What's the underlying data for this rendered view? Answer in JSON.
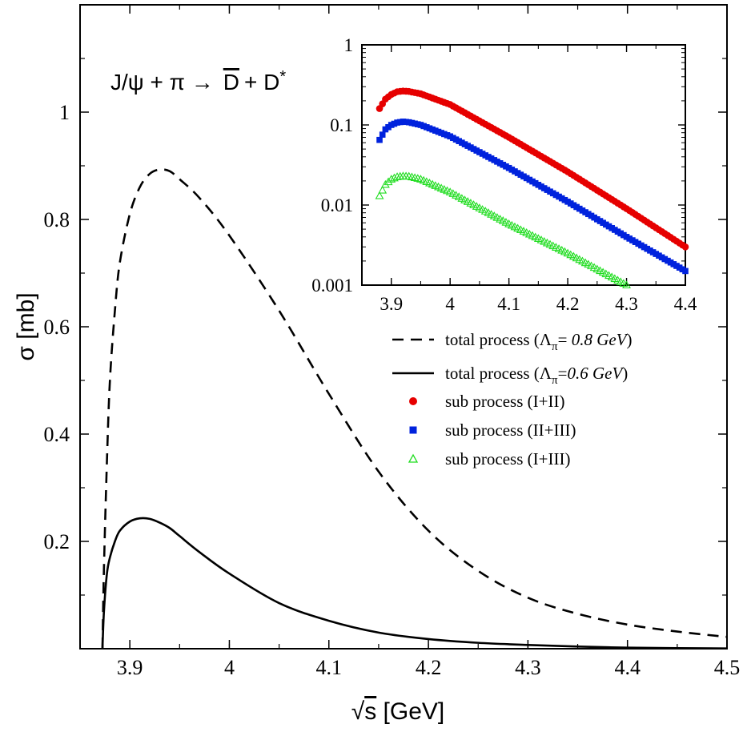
{
  "chart_data": [
    {
      "id": "main",
      "type": "line",
      "title": "J/ψ + π → D̅ + D*",
      "title_parts": {
        "lhs": "J/ψ + π →",
        "d": "D",
        "plus": "+ D",
        "star": "*"
      },
      "xlabel": "√s [GeV]",
      "xlabel_parts": {
        "root": "√",
        "var": "s",
        "unit": " [GeV]"
      },
      "ylabel": "σ [mb]",
      "xlim": [
        3.85,
        4.5
      ],
      "ylim": [
        0,
        1.2
      ],
      "xticks": [
        3.9,
        4.0,
        4.1,
        4.2,
        4.3,
        4.4,
        4.5
      ],
      "xtick_labels": [
        "3.9",
        "4",
        "4.1",
        "4.2",
        "4.3",
        "4.4",
        "4.5"
      ],
      "yticks": [
        0.2,
        0.4,
        0.6,
        0.8,
        1.0
      ],
      "ytick_labels": [
        "0.2",
        "0.4",
        "0.6",
        "0.8",
        "1"
      ],
      "series": [
        {
          "name": "total process (Λπ= 0.8 GeV)",
          "style": "dashed",
          "x": [
            3.8725,
            3.874,
            3.877,
            3.88,
            3.885,
            3.89,
            3.9,
            3.91,
            3.92,
            3.93,
            3.94,
            3.95,
            3.97,
            4.0,
            4.05,
            4.1,
            4.15,
            4.2,
            4.25,
            4.3,
            4.35,
            4.4,
            4.45,
            4.5
          ],
          "y": [
            0.0,
            0.15,
            0.35,
            0.5,
            0.63,
            0.72,
            0.81,
            0.86,
            0.885,
            0.893,
            0.89,
            0.875,
            0.84,
            0.77,
            0.63,
            0.475,
            0.33,
            0.22,
            0.145,
            0.095,
            0.065,
            0.045,
            0.032,
            0.022
          ]
        },
        {
          "name": "total process (Λπ=0.6 GeV)",
          "style": "solid",
          "x": [
            3.8725,
            3.874,
            3.877,
            3.88,
            3.885,
            3.89,
            3.9,
            3.91,
            3.92,
            3.93,
            3.94,
            3.95,
            3.97,
            4.0,
            4.05,
            4.1,
            4.15,
            4.2,
            4.25,
            4.3,
            4.35,
            4.4,
            4.45,
            4.5
          ],
          "y": [
            0.0,
            0.07,
            0.14,
            0.17,
            0.2,
            0.22,
            0.237,
            0.243,
            0.242,
            0.235,
            0.225,
            0.21,
            0.18,
            0.14,
            0.085,
            0.052,
            0.03,
            0.018,
            0.011,
            0.007,
            0.004,
            0.002,
            0.001,
            0.0005
          ]
        }
      ],
      "legend": [
        {
          "style": "dashed",
          "label": "total process (",
          "sym": "Λ",
          "sub": "π",
          "rest": "= ",
          "value": "0.8 GeV",
          "close": ")"
        },
        {
          "style": "solid",
          "label": "total process (",
          "sym": "Λ",
          "sub": "π",
          "rest": "=",
          "value": "0.6 GeV",
          "close": ")"
        },
        {
          "style": "circle",
          "color": "#e60000",
          "label": "sub process (I+II)"
        },
        {
          "style": "square",
          "color": "#0022dd",
          "label": "sub process (II+III)"
        },
        {
          "style": "triangle",
          "color": "#22dd22",
          "label": "sub process (I+III)"
        }
      ],
      "legend_position": "right"
    },
    {
      "id": "inset",
      "type": "scatter",
      "yscale": "log",
      "xlim": [
        3.85,
        4.4
      ],
      "ylim": [
        0.001,
        1
      ],
      "xticks": [
        3.9,
        4.0,
        4.1,
        4.2,
        4.3,
        4.4
      ],
      "xtick_labels": [
        "3.9",
        "4",
        "4.1",
        "4.2",
        "4.3",
        "4.4"
      ],
      "yticks": [
        0.001,
        0.01,
        0.1,
        1
      ],
      "ytick_labels": [
        "0.001",
        "0.01",
        "0.1",
        "1"
      ],
      "series": [
        {
          "name": "sub process (I+II)",
          "marker": "circle",
          "color": "#e60000",
          "x_start": 3.88,
          "x_end": 4.4,
          "x_step": 0.005,
          "key_x": [
            3.88,
            3.89,
            3.9,
            3.91,
            3.92,
            3.93,
            3.95,
            4.0,
            4.1,
            4.2,
            4.3,
            4.4
          ],
          "key_y": [
            0.16,
            0.21,
            0.24,
            0.26,
            0.265,
            0.262,
            0.245,
            0.18,
            0.07,
            0.026,
            0.009,
            0.003
          ]
        },
        {
          "name": "sub process (II+III)",
          "marker": "square",
          "color": "#0022dd",
          "x_start": 3.88,
          "x_end": 4.4,
          "x_step": 0.005,
          "key_x": [
            3.88,
            3.89,
            3.9,
            3.91,
            3.92,
            3.93,
            3.95,
            4.0,
            4.1,
            4.2,
            4.3,
            4.4
          ],
          "key_y": [
            0.065,
            0.088,
            0.1,
            0.107,
            0.11,
            0.108,
            0.1,
            0.072,
            0.029,
            0.011,
            0.004,
            0.0015
          ]
        },
        {
          "name": "sub process (I+III)",
          "marker": "triangle",
          "color": "#22dd22",
          "x_start": 3.88,
          "x_end": 4.3,
          "x_step": 0.005,
          "key_x": [
            3.88,
            3.89,
            3.9,
            3.91,
            3.92,
            3.93,
            3.95,
            4.0,
            4.1,
            4.2,
            4.3
          ],
          "key_y": [
            0.013,
            0.018,
            0.021,
            0.0225,
            0.023,
            0.0228,
            0.021,
            0.0145,
            0.0058,
            0.0025,
            0.001
          ]
        }
      ]
    }
  ]
}
